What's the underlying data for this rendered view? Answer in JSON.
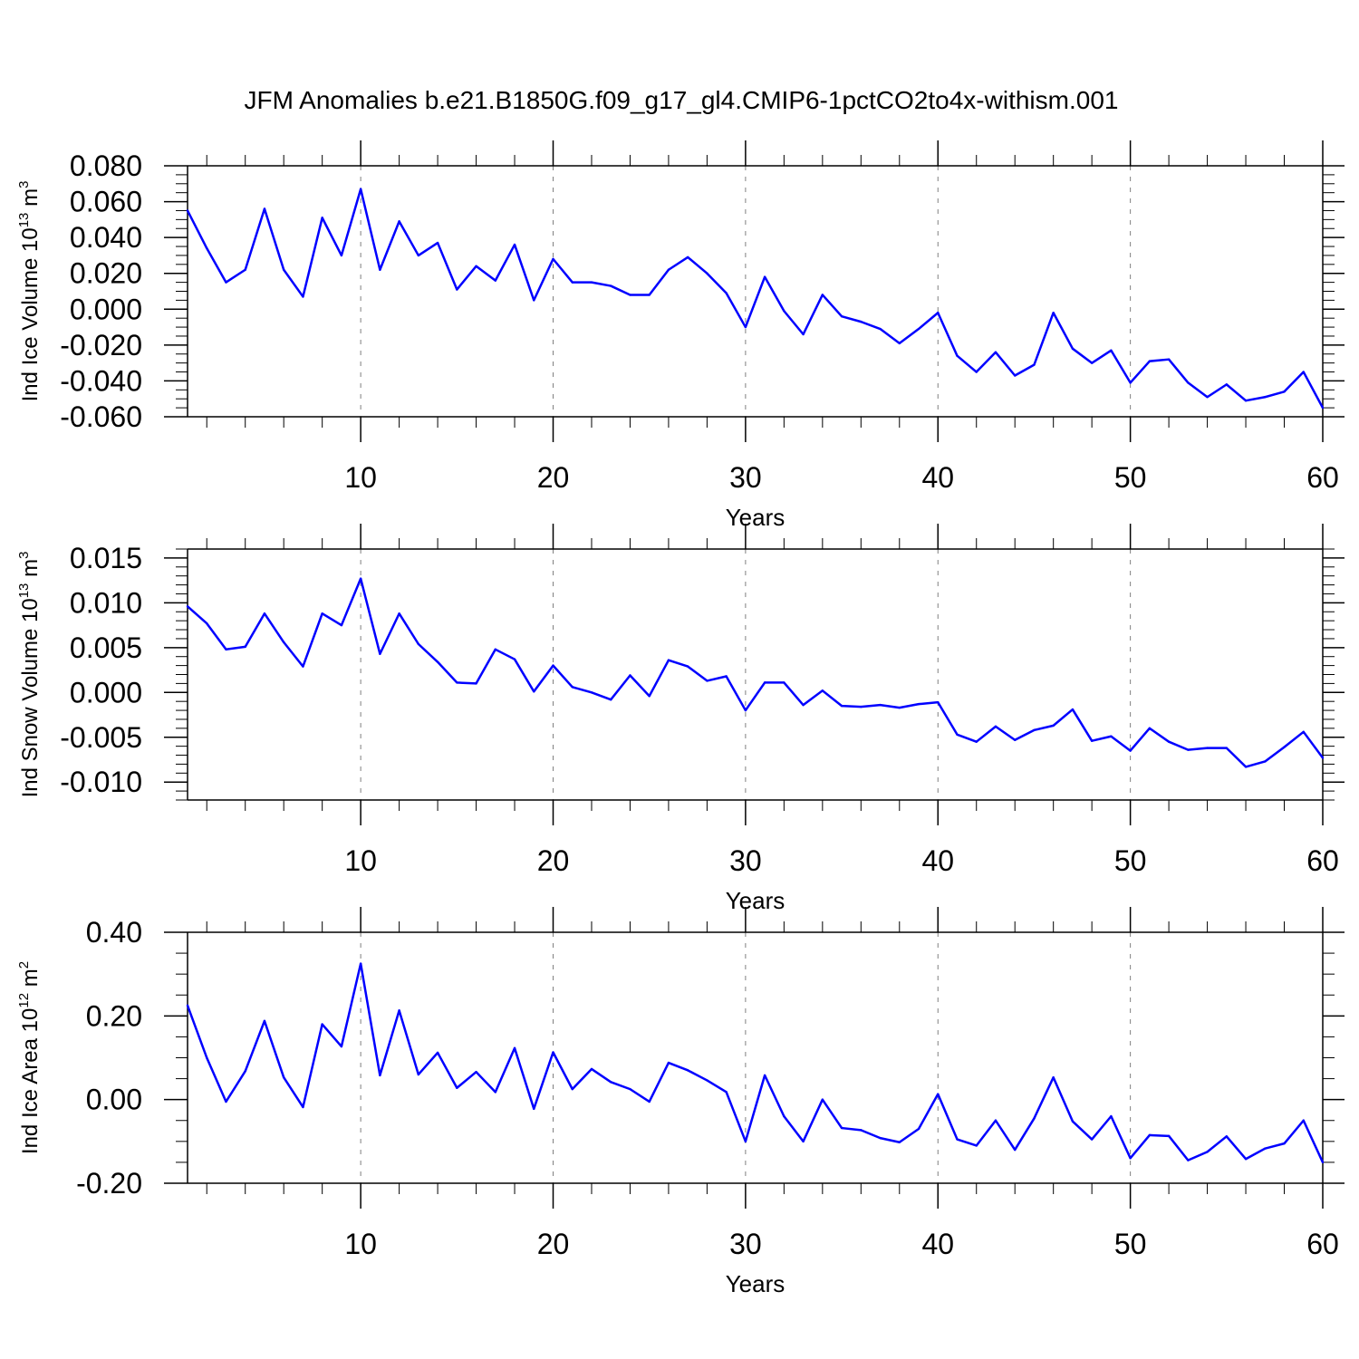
{
  "title": "JFM Anomalies b.e21.B1850G.f09_g17_gl4.CMIP6-1pctCO2to4x-withism.001",
  "colors": {
    "line": "#0000ff",
    "axis": "#000000",
    "grid": "#808080"
  },
  "chart_data": [
    {
      "type": "line",
      "ylabel": {
        "text": "Ind Ice Volume 10",
        "sup": "13",
        "unit": " m",
        "unit_sup": "3"
      },
      "xlabel": "Years",
      "xlim": [
        1,
        60
      ],
      "ylim": [
        -0.06,
        0.08
      ],
      "x_ticks": [
        "10",
        "20",
        "30",
        "40",
        "50",
        "60"
      ],
      "y_ticks": [
        "0.080",
        "0.060",
        "0.040",
        "0.020",
        "0.000",
        "-0.020",
        "-0.040",
        "-0.060"
      ],
      "y_tick_values": [
        0.08,
        0.06,
        0.04,
        0.02,
        0.0,
        -0.02,
        -0.04,
        -0.06
      ],
      "y_minor_step": 0.005,
      "grid_x": [
        10,
        20,
        30,
        40,
        50
      ],
      "values": [
        0.055,
        0.034,
        0.015,
        0.022,
        0.056,
        0.022,
        0.007,
        0.051,
        0.03,
        0.067,
        0.022,
        0.049,
        0.03,
        0.037,
        0.011,
        0.024,
        0.016,
        0.036,
        0.005,
        0.028,
        0.015,
        0.015,
        0.013,
        0.008,
        0.008,
        0.022,
        0.029,
        0.02,
        0.009,
        -0.01,
        0.018,
        -0.001,
        -0.014,
        0.008,
        -0.004,
        -0.007,
        -0.011,
        -0.019,
        -0.011,
        -0.002,
        -0.026,
        -0.035,
        -0.024,
        -0.037,
        -0.031,
        -0.002,
        -0.022,
        -0.03,
        -0.023,
        -0.041,
        -0.029,
        -0.028,
        -0.041,
        -0.049,
        -0.042,
        -0.051,
        -0.049,
        -0.046,
        -0.035,
        -0.055
      ]
    },
    {
      "type": "line",
      "ylabel": {
        "text": "Ind Snow Volume 10",
        "sup": "13",
        "unit": " m",
        "unit_sup": "3"
      },
      "xlabel": "Years",
      "xlim": [
        1,
        60
      ],
      "ylim": [
        -0.012,
        0.016
      ],
      "x_ticks": [
        "10",
        "20",
        "30",
        "40",
        "50",
        "60"
      ],
      "y_ticks": [
        "0.015",
        "0.010",
        "0.005",
        "0.000",
        "-0.005",
        "-0.010"
      ],
      "y_tick_values": [
        0.015,
        0.01,
        0.005,
        0.0,
        -0.005,
        -0.01
      ],
      "y_minor_step": 0.001,
      "grid_x": [
        10,
        20,
        30,
        40,
        50
      ],
      "values": [
        0.0096,
        0.0077,
        0.0048,
        0.0051,
        0.0088,
        0.0056,
        0.0029,
        0.0088,
        0.0075,
        0.0127,
        0.0043,
        0.0088,
        0.0054,
        0.0034,
        0.0011,
        0.001,
        0.0048,
        0.0037,
        0.0001,
        0.003,
        0.0006,
        0.0,
        -0.0008,
        0.0019,
        -0.0004,
        0.0036,
        0.0029,
        0.0013,
        0.0018,
        -0.002,
        0.0011,
        0.0011,
        -0.0014,
        0.0002,
        -0.0015,
        -0.0016,
        -0.0014,
        -0.0017,
        -0.0013,
        -0.0011,
        -0.0047,
        -0.0055,
        -0.0038,
        -0.0053,
        -0.0042,
        -0.0037,
        -0.0019,
        -0.0054,
        -0.0049,
        -0.0065,
        -0.004,
        -0.0055,
        -0.0064,
        -0.0062,
        -0.0062,
        -0.0083,
        -0.0077,
        -0.0061,
        -0.0044,
        -0.0073
      ]
    },
    {
      "type": "line",
      "ylabel": {
        "text": "Ind Ice Area 10",
        "sup": "12",
        "unit": " m",
        "unit_sup": "2"
      },
      "xlabel": "Years",
      "xlim": [
        1,
        60
      ],
      "ylim": [
        -0.2,
        0.4
      ],
      "x_ticks": [
        "10",
        "20",
        "30",
        "40",
        "50",
        "60"
      ],
      "y_ticks": [
        "0.40",
        "0.20",
        "0.00",
        "-0.20"
      ],
      "y_tick_values": [
        0.4,
        0.2,
        0.0,
        -0.2
      ],
      "y_minor_step": 0.05,
      "grid_x": [
        10,
        20,
        30,
        40,
        50
      ],
      "values": [
        0.225,
        0.1,
        -0.005,
        0.068,
        0.188,
        0.053,
        -0.018,
        0.18,
        0.127,
        0.325,
        0.058,
        0.213,
        0.06,
        0.112,
        0.028,
        0.066,
        0.018,
        0.123,
        -0.022,
        0.113,
        0.025,
        0.073,
        0.042,
        0.025,
        -0.005,
        0.088,
        0.07,
        0.046,
        0.018,
        -0.1,
        0.058,
        -0.04,
        -0.1,
        0.0,
        -0.068,
        -0.073,
        -0.092,
        -0.102,
        -0.07,
        0.013,
        -0.095,
        -0.11,
        -0.05,
        -0.12,
        -0.045,
        0.053,
        -0.052,
        -0.095,
        -0.04,
        -0.14,
        -0.085,
        -0.087,
        -0.145,
        -0.125,
        -0.088,
        -0.142,
        -0.117,
        -0.105,
        -0.05,
        -0.15
      ]
    }
  ]
}
